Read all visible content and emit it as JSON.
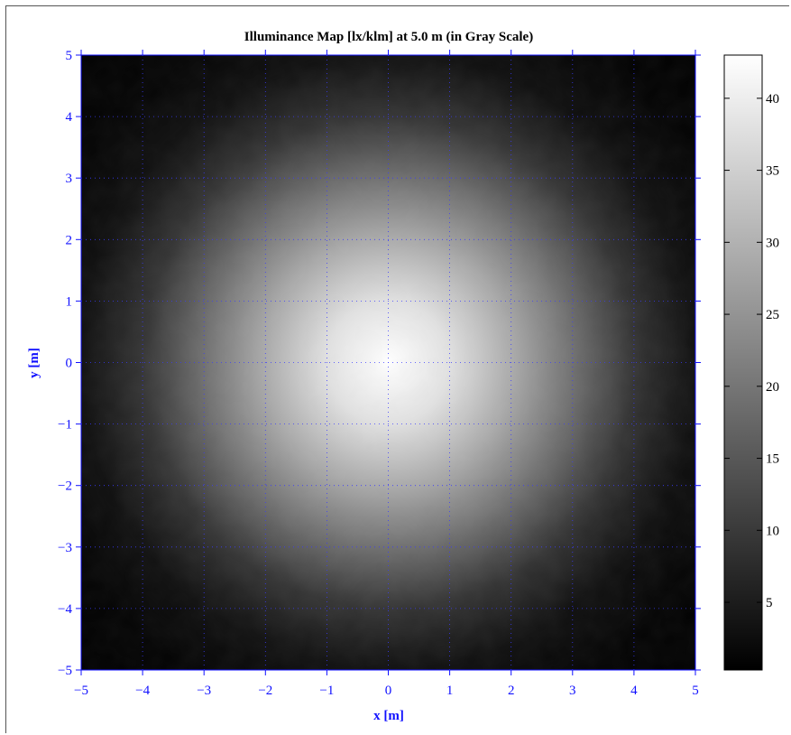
{
  "chart_data": {
    "type": "heatmap",
    "title": "Illuminance Map [lx/klm] at 5.0 m (in Gray Scale)",
    "xlabel": "x [m]",
    "ylabel": "y [m]",
    "xlim": [
      -5,
      5
    ],
    "ylim": [
      -5,
      5
    ],
    "x_ticks": [
      -5,
      -4,
      -3,
      -2,
      -1,
      0,
      1,
      2,
      3,
      4,
      5
    ],
    "y_ticks": [
      -5,
      -4,
      -3,
      -2,
      -1,
      0,
      1,
      2,
      3,
      4,
      5
    ],
    "x_tick_labels": [
      "−5",
      "−4",
      "−3",
      "−2",
      "−1",
      "0",
      "1",
      "2",
      "3",
      "4",
      "5"
    ],
    "y_tick_labels": [
      "−5",
      "−4",
      "−3",
      "−2",
      "−1",
      "0",
      "1",
      "2",
      "3",
      "4",
      "5"
    ],
    "grid": true,
    "colormap": "gray",
    "peak_value": 43,
    "peak_location": [
      0,
      0
    ],
    "profile_radius_m": [
      0,
      1,
      2,
      3,
      4,
      5,
      6,
      7.1
    ],
    "profile_values": [
      43,
      38,
      29,
      19,
      9,
      3,
      1,
      0.3
    ],
    "colorbar": {
      "range": [
        0.3,
        43
      ],
      "ticks": [
        5,
        10,
        15,
        20,
        25,
        30,
        35,
        40
      ],
      "tick_labels": [
        "5",
        "10",
        "15",
        "20",
        "25",
        "30",
        "35",
        "40"
      ]
    },
    "colors": {
      "axis": "#1010ff",
      "grid": "#3a3aff"
    }
  }
}
